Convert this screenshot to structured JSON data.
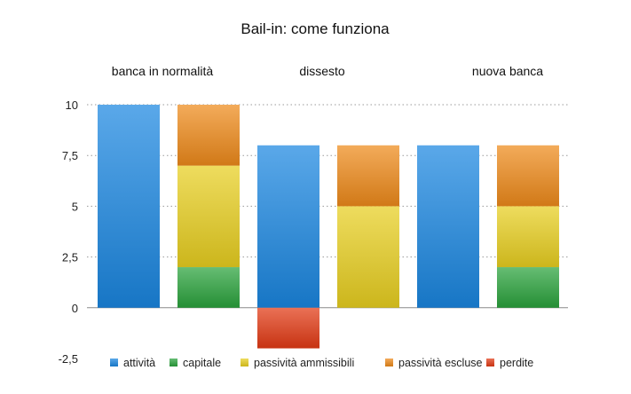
{
  "chart_data": {
    "type": "bar",
    "stacked": true,
    "title": "Bail-in: come funziona",
    "groups": [
      "banca in normalità",
      "dissesto",
      "nuova banca"
    ],
    "ylim": [
      -2.5,
      10
    ],
    "yticks": [
      "10",
      "7,5",
      "5",
      "2,5",
      "0",
      "-2,5"
    ],
    "ytick_values": [
      10,
      7.5,
      5,
      2.5,
      0,
      -2.5
    ],
    "grid": true,
    "legend_position": "bottom",
    "series": [
      {
        "name": "attività",
        "color": "#1a86e0"
      },
      {
        "name": "capitale",
        "color": "#2aa33c"
      },
      {
        "name": "passività ammissibili",
        "color": "#e8cf20"
      },
      {
        "name": "passività escluse",
        "color": "#ee8a1a"
      },
      {
        "name": "perdite",
        "color": "#e23a14"
      }
    ],
    "bars": [
      {
        "group": "banca in normalità",
        "segments": [
          {
            "series": "attività",
            "value": 10
          }
        ]
      },
      {
        "group": "banca in normalità",
        "segments": [
          {
            "series": "capitale",
            "value": 2
          },
          {
            "series": "passività ammissibili",
            "value": 5
          },
          {
            "series": "passività escluse",
            "value": 3
          }
        ]
      },
      {
        "group": "dissesto",
        "segments": [
          {
            "series": "attività",
            "value": 8
          },
          {
            "series": "perdite",
            "value": -2
          }
        ]
      },
      {
        "group": "dissesto",
        "segments": [
          {
            "series": "passività ammissibili",
            "value": 5
          },
          {
            "series": "passività escluse",
            "value": 3
          }
        ]
      },
      {
        "group": "nuova banca",
        "segments": [
          {
            "series": "attività",
            "value": 8
          }
        ]
      },
      {
        "group": "nuova banca",
        "segments": [
          {
            "series": "capitale",
            "value": 2
          },
          {
            "series": "passività ammissibili",
            "value": 3
          },
          {
            "series": "passività escluse",
            "value": 3
          }
        ]
      }
    ]
  }
}
